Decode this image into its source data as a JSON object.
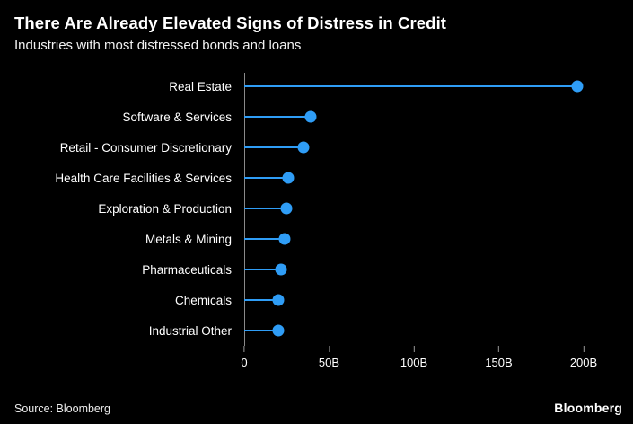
{
  "colors": {
    "background": "#000000",
    "accent": "#2f9df6",
    "axis": "#8a8a8a",
    "text": "#ffffff"
  },
  "header": {
    "title": "There Are Already Elevated Signs of Distress in Credit",
    "subtitle": "Industries with most distressed bonds and loans"
  },
  "chart_data": {
    "type": "bar",
    "orientation": "horizontal",
    "style": "lollipop",
    "title": "There Are Already Elevated Signs of Distress in Credit",
    "subtitle": "Industries with most distressed bonds and loans",
    "categories": [
      "Real Estate",
      "Software & Services",
      "Retail - Consumer Discretionary",
      "Health Care Facilities & Services",
      "Exploration & Production",
      "Metals & Mining",
      "Pharmaceuticals",
      "Chemicals",
      "Industrial Other"
    ],
    "values": [
      197,
      39,
      35,
      26,
      25,
      24,
      22,
      20,
      20
    ],
    "unit": "B",
    "xlabel": "",
    "ylabel": "",
    "xlim": [
      0,
      200
    ],
    "xticks": [
      {
        "value": 0,
        "label": "0"
      },
      {
        "value": 50,
        "label": "50B"
      },
      {
        "value": 100,
        "label": "100B"
      },
      {
        "value": 150,
        "label": "150B"
      },
      {
        "value": 200,
        "label": "200B"
      }
    ],
    "grid": false,
    "legend": "none"
  },
  "footer": {
    "source": "Source: Bloomberg",
    "logo": "Bloomberg"
  }
}
